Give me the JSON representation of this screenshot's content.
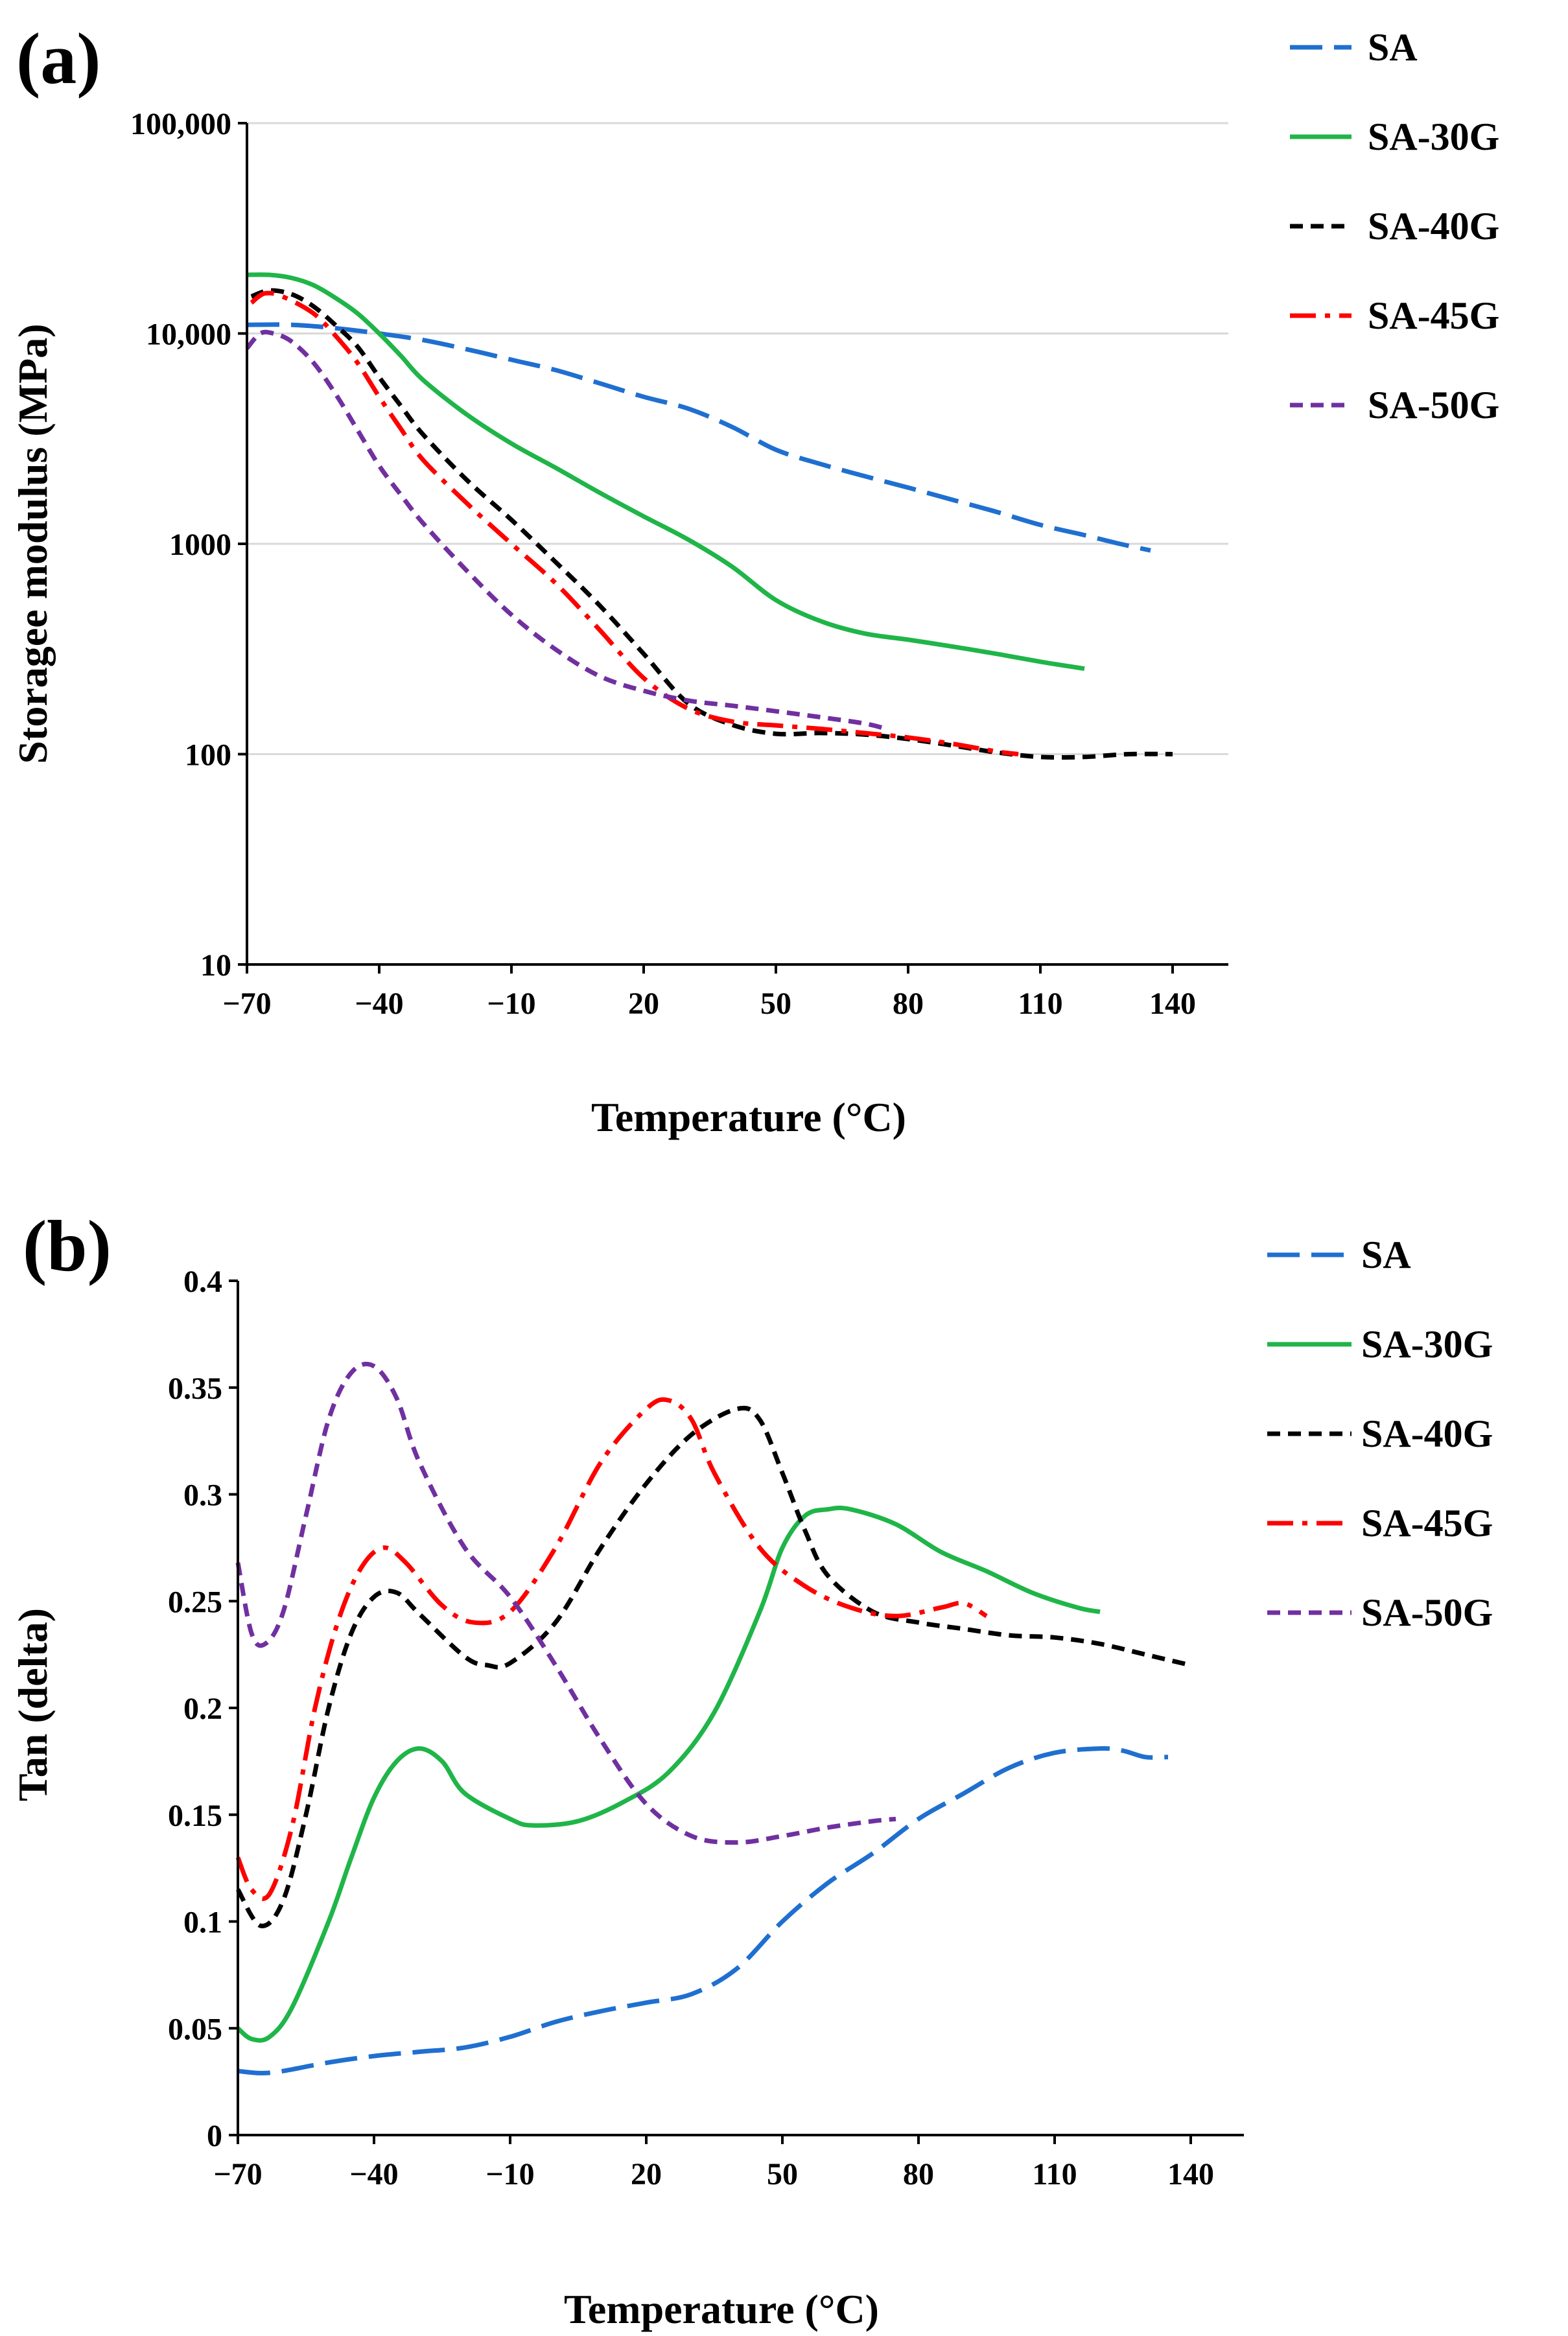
{
  "figure": {
    "series_legend": [
      {
        "name": "SA",
        "color": "#1f6fd0",
        "dash": "long-dash"
      },
      {
        "name": "SA-30G",
        "color": "#1fb548",
        "dash": "solid"
      },
      {
        "name": "SA-40G",
        "color": "#000000",
        "dash": "short-dash"
      },
      {
        "name": "SA-45G",
        "color": "#ff0000",
        "dash": "dash-dot"
      },
      {
        "name": "SA-50G",
        "color": "#7030a0",
        "dash": "short-dash"
      }
    ]
  },
  "chart_data": [
    {
      "panel_label": "(a)",
      "type": "line",
      "xlabel": "Temperature (°C)",
      "ylabel": "Storagee  modulus (MPa)",
      "ylog": true,
      "xlim": [
        -70,
        145
      ],
      "ylim": [
        10,
        100000
      ],
      "x_ticks": [
        "−70",
        "−40",
        "−10",
        "20",
        "50",
        "80",
        "110",
        "140"
      ],
      "x_tick_values": [
        -70,
        -40,
        -10,
        20,
        50,
        80,
        110,
        140
      ],
      "y_ticks": [
        "10",
        "100",
        "1000",
        "10,000",
        "100,000"
      ],
      "y_tick_values": [
        10,
        100,
        1000,
        10000,
        100000
      ],
      "grid": "horizontal",
      "legend_position": "right",
      "series": [
        {
          "name": "SA",
          "color": "#1f6fd0",
          "dash": "long-dash",
          "points": [
            [
              -70,
              11000
            ],
            [
              -60,
              11000
            ],
            [
              -50,
              10600
            ],
            [
              -40,
              10000
            ],
            [
              -30,
              9300
            ],
            [
              -20,
              8400
            ],
            [
              -10,
              7500
            ],
            [
              0,
              6700
            ],
            [
              10,
              5800
            ],
            [
              20,
              5000
            ],
            [
              30,
              4400
            ],
            [
              40,
              3600
            ],
            [
              50,
              2800
            ],
            [
              60,
              2400
            ],
            [
              70,
              2100
            ],
            [
              80,
              1850
            ],
            [
              90,
              1620
            ],
            [
              100,
              1420
            ],
            [
              110,
              1230
            ],
            [
              120,
              1100
            ],
            [
              128,
              1000
            ],
            [
              135,
              930
            ]
          ]
        },
        {
          "name": "SA-30G",
          "color": "#1fb548",
          "dash": "solid",
          "points": [
            [
              -70,
              19000
            ],
            [
              -65,
              19000
            ],
            [
              -60,
              18400
            ],
            [
              -55,
              17000
            ],
            [
              -50,
              14800
            ],
            [
              -45,
              12500
            ],
            [
              -40,
              10000
            ],
            [
              -35,
              7800
            ],
            [
              -30,
              6000
            ],
            [
              -20,
              4100
            ],
            [
              -10,
              3000
            ],
            [
              0,
              2300
            ],
            [
              10,
              1750
            ],
            [
              20,
              1350
            ],
            [
              30,
              1050
            ],
            [
              40,
              780
            ],
            [
              50,
              540
            ],
            [
              60,
              430
            ],
            [
              70,
              375
            ],
            [
              80,
              350
            ],
            [
              90,
              325
            ],
            [
              100,
              300
            ],
            [
              110,
              275
            ],
            [
              120,
              255
            ]
          ]
        },
        {
          "name": "SA-40G",
          "color": "#000000",
          "dash": "short-dash",
          "points": [
            [
              -69,
              15000
            ],
            [
              -65,
              16000
            ],
            [
              -60,
              15400
            ],
            [
              -55,
              13500
            ],
            [
              -50,
              11000
            ],
            [
              -45,
              8700
            ],
            [
              -40,
              6200
            ],
            [
              -35,
              4500
            ],
            [
              -30,
              3300
            ],
            [
              -20,
              2000
            ],
            [
              -10,
              1300
            ],
            [
              0,
              820
            ],
            [
              10,
              510
            ],
            [
              20,
              300
            ],
            [
              30,
              175
            ],
            [
              40,
              138
            ],
            [
              50,
              125
            ],
            [
              60,
              126
            ],
            [
              70,
              124
            ],
            [
              80,
              118
            ],
            [
              90,
              110
            ],
            [
              100,
              102
            ],
            [
              110,
              97
            ],
            [
              120,
              97
            ],
            [
              130,
              100
            ],
            [
              140,
              100
            ]
          ]
        },
        {
          "name": "SA-45G",
          "color": "#ff0000",
          "dash": "dash-dot",
          "points": [
            [
              -69,
              14000
            ],
            [
              -66,
              15500
            ],
            [
              -62,
              15000
            ],
            [
              -55,
              12500
            ],
            [
              -50,
              9800
            ],
            [
              -45,
              7300
            ],
            [
              -40,
              5000
            ],
            [
              -35,
              3500
            ],
            [
              -30,
              2500
            ],
            [
              -20,
              1550
            ],
            [
              -10,
              1000
            ],
            [
              0,
              650
            ],
            [
              10,
              390
            ],
            [
              20,
              230
            ],
            [
              30,
              165
            ],
            [
              40,
              143
            ],
            [
              50,
              137
            ],
            [
              60,
              132
            ],
            [
              70,
              126
            ],
            [
              80,
              120
            ],
            [
              90,
              112
            ],
            [
              100,
              103
            ],
            [
              105,
              100
            ]
          ]
        },
        {
          "name": "SA-50G",
          "color": "#7030a0",
          "dash": "short-dash",
          "points": [
            [
              -70,
              8500
            ],
            [
              -67,
              10000
            ],
            [
              -64,
              10000
            ],
            [
              -60,
              9200
            ],
            [
              -55,
              7300
            ],
            [
              -50,
              5200
            ],
            [
              -45,
              3500
            ],
            [
              -40,
              2350
            ],
            [
              -35,
              1700
            ],
            [
              -30,
              1250
            ],
            [
              -20,
              740
            ],
            [
              -10,
              460
            ],
            [
              0,
              315
            ],
            [
              10,
              235
            ],
            [
              20,
              200
            ],
            [
              30,
              180
            ],
            [
              40,
              170
            ],
            [
              50,
              160
            ],
            [
              60,
              150
            ],
            [
              70,
              140
            ],
            [
              75,
              132
            ]
          ]
        }
      ]
    },
    {
      "panel_label": "(b)",
      "type": "line",
      "xlabel": "Temperature (°C)",
      "ylabel": "Tan (delta)",
      "ylog": false,
      "xlim": [
        -70,
        150
      ],
      "ylim": [
        0,
        0.4
      ],
      "x_ticks": [
        "−70",
        "−40",
        "−10",
        "20",
        "50",
        "80",
        "110",
        "140"
      ],
      "x_tick_values": [
        -70,
        -40,
        -10,
        20,
        50,
        80,
        110,
        140
      ],
      "y_ticks": [
        "0",
        "0.05",
        "0.1",
        "0.15",
        "0.2",
        "0.25",
        "0.3",
        "0.35",
        "0.4"
      ],
      "y_tick_values": [
        0,
        0.05,
        0.1,
        0.15,
        0.2,
        0.25,
        0.3,
        0.35,
        0.4
      ],
      "grid": "none",
      "legend_position": "right",
      "series": [
        {
          "name": "SA",
          "color": "#1f6fd0",
          "dash": "long-dash",
          "points": [
            [
              -70,
              0.03
            ],
            [
              -65,
              0.029
            ],
            [
              -60,
              0.03
            ],
            [
              -50,
              0.034
            ],
            [
              -40,
              0.037
            ],
            [
              -30,
              0.039
            ],
            [
              -20,
              0.041
            ],
            [
              -10,
              0.046
            ],
            [
              0,
              0.053
            ],
            [
              10,
              0.058
            ],
            [
              20,
              0.062
            ],
            [
              30,
              0.066
            ],
            [
              40,
              0.078
            ],
            [
              50,
              0.1
            ],
            [
              60,
              0.118
            ],
            [
              70,
              0.132
            ],
            [
              80,
              0.148
            ],
            [
              90,
              0.16
            ],
            [
              100,
              0.172
            ],
            [
              110,
              0.179
            ],
            [
              120,
              0.181
            ],
            [
              125,
              0.18
            ],
            [
              130,
              0.177
            ],
            [
              135,
              0.177
            ]
          ]
        },
        {
          "name": "SA-30G",
          "color": "#1fb548",
          "dash": "solid",
          "points": [
            [
              -70,
              0.05
            ],
            [
              -67,
              0.045
            ],
            [
              -63,
              0.046
            ],
            [
              -58,
              0.06
            ],
            [
              -50,
              0.1
            ],
            [
              -45,
              0.13
            ],
            [
              -40,
              0.158
            ],
            [
              -35,
              0.175
            ],
            [
              -30,
              0.181
            ],
            [
              -25,
              0.175
            ],
            [
              -20,
              0.16
            ],
            [
              -10,
              0.148
            ],
            [
              -5,
              0.145
            ],
            [
              5,
              0.147
            ],
            [
              15,
              0.156
            ],
            [
              25,
              0.17
            ],
            [
              35,
              0.198
            ],
            [
              45,
              0.245
            ],
            [
              50,
              0.275
            ],
            [
              55,
              0.29
            ],
            [
              60,
              0.293
            ],
            [
              65,
              0.293
            ],
            [
              75,
              0.286
            ],
            [
              85,
              0.273
            ],
            [
              95,
              0.264
            ],
            [
              105,
              0.254
            ],
            [
              115,
              0.247
            ],
            [
              120,
              0.245
            ]
          ]
        },
        {
          "name": "SA-40G",
          "color": "#000000",
          "dash": "short-dash",
          "points": [
            [
              -70,
              0.115
            ],
            [
              -65,
              0.098
            ],
            [
              -60,
              0.11
            ],
            [
              -55,
              0.15
            ],
            [
              -50,
              0.2
            ],
            [
              -45,
              0.235
            ],
            [
              -40,
              0.252
            ],
            [
              -35,
              0.254
            ],
            [
              -30,
              0.244
            ],
            [
              -20,
              0.224
            ],
            [
              -15,
              0.22
            ],
            [
              -10,
              0.221
            ],
            [
              0,
              0.24
            ],
            [
              10,
              0.275
            ],
            [
              20,
              0.305
            ],
            [
              30,
              0.328
            ],
            [
              40,
              0.34
            ],
            [
              45,
              0.335
            ],
            [
              50,
              0.31
            ],
            [
              55,
              0.283
            ],
            [
              60,
              0.262
            ],
            [
              70,
              0.245
            ],
            [
              80,
              0.24
            ],
            [
              90,
              0.237
            ],
            [
              100,
              0.234
            ],
            [
              110,
              0.233
            ],
            [
              120,
              0.23
            ],
            [
              130,
              0.225
            ],
            [
              140,
              0.22
            ]
          ]
        },
        {
          "name": "SA-45G",
          "color": "#ff0000",
          "dash": "dash-dot",
          "points": [
            [
              -70,
              0.13
            ],
            [
              -67,
              0.115
            ],
            [
              -63,
              0.113
            ],
            [
              -58,
              0.145
            ],
            [
              -53,
              0.2
            ],
            [
              -48,
              0.24
            ],
            [
              -43,
              0.265
            ],
            [
              -38,
              0.275
            ],
            [
              -33,
              0.268
            ],
            [
              -25,
              0.248
            ],
            [
              -18,
              0.24
            ],
            [
              -10,
              0.245
            ],
            [
              0,
              0.275
            ],
            [
              10,
              0.315
            ],
            [
              20,
              0.34
            ],
            [
              25,
              0.344
            ],
            [
              30,
              0.335
            ],
            [
              35,
              0.31
            ],
            [
              45,
              0.275
            ],
            [
              55,
              0.257
            ],
            [
              65,
              0.247
            ],
            [
              75,
              0.243
            ],
            [
              85,
              0.247
            ],
            [
              90,
              0.249
            ],
            [
              95,
              0.243
            ]
          ]
        },
        {
          "name": "SA-50G",
          "color": "#7030a0",
          "dash": "short-dash",
          "points": [
            [
              -70,
              0.268
            ],
            [
              -67,
              0.235
            ],
            [
              -64,
              0.23
            ],
            [
              -60,
              0.245
            ],
            [
              -55,
              0.29
            ],
            [
              -50,
              0.335
            ],
            [
              -45,
              0.357
            ],
            [
              -40,
              0.36
            ],
            [
              -35,
              0.345
            ],
            [
              -30,
              0.315
            ],
            [
              -20,
              0.275
            ],
            [
              -10,
              0.252
            ],
            [
              0,
              0.22
            ],
            [
              10,
              0.185
            ],
            [
              20,
              0.155
            ],
            [
              30,
              0.14
            ],
            [
              40,
              0.137
            ],
            [
              50,
              0.14
            ],
            [
              60,
              0.144
            ],
            [
              70,
              0.147
            ],
            [
              75,
              0.148
            ]
          ]
        }
      ]
    }
  ]
}
